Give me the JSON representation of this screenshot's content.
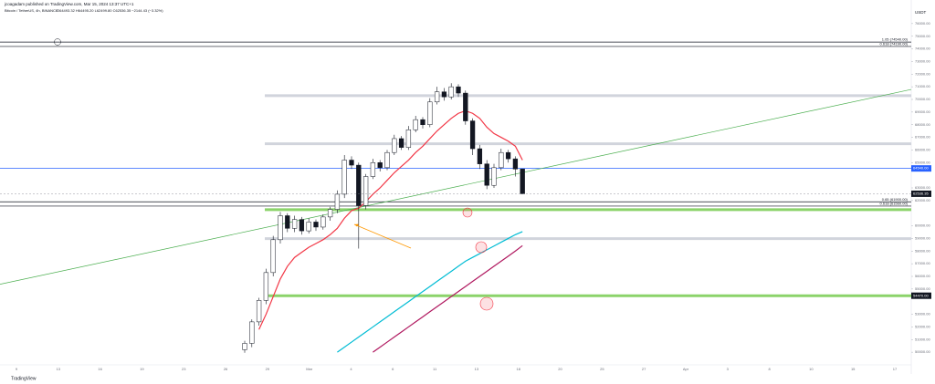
{
  "header": {
    "publisher": "jcoagadam published on TradingView.com, Mar 15, 2024 13:37 UTC+1",
    "symbol": "Bitcoin / TetherUS, 4h, BINANCE",
    "ohlc": "O64493.32 H64495.20 L62499.80 C62536.35 −2144.43 (−3.32%)",
    "currency": "USDT",
    "brand": "TradingView"
  },
  "chart_data": {
    "type": "candlestick",
    "up_color": "#ffffff",
    "down_color": "#131722",
    "ylim": [
      49000,
      77000
    ],
    "yticks": [
      {
        "value": 76000,
        "label": "76000.00"
      },
      {
        "value": 75000,
        "label": "75000.00"
      },
      {
        "value": 74000,
        "label": "74000.00"
      },
      {
        "value": 73000,
        "label": "73000.00"
      },
      {
        "value": 72000,
        "label": "72000.00"
      },
      {
        "value": 71000,
        "label": "71000.00"
      },
      {
        "value": 70000,
        "label": "70000.00"
      },
      {
        "value": 69000,
        "label": "69000.00"
      },
      {
        "value": 68000,
        "label": "68000.00"
      },
      {
        "value": 67000,
        "label": "67000.00"
      },
      {
        "value": 66000,
        "label": "66000.00"
      },
      {
        "value": 65000,
        "label": "65000.00"
      },
      {
        "value": 63000,
        "label": "63000.00"
      },
      {
        "value": 62000,
        "label": "62000.00"
      },
      {
        "value": 60000,
        "label": "60000.00"
      },
      {
        "value": 59000,
        "label": "59000.00"
      },
      {
        "value": 58000,
        "label": "58000.00"
      },
      {
        "value": 57000,
        "label": "57000.00"
      },
      {
        "value": 56000,
        "label": "56000.00"
      },
      {
        "value": 55000,
        "label": "55000.00"
      },
      {
        "value": 53000,
        "label": "53000.00"
      },
      {
        "value": 52000,
        "label": "52000.00"
      },
      {
        "value": 51000,
        "label": "51000.00"
      },
      {
        "value": 50000,
        "label": "50000.00"
      }
    ],
    "time_labels": [
      "9",
      "13",
      "16",
      "19",
      "23",
      "26",
      "29",
      "Mar",
      "4",
      "6",
      "11",
      "13",
      "18",
      "20",
      "25",
      "27",
      "Apr",
      "3",
      "8",
      "10",
      "15",
      "17"
    ],
    "candles": [
      [
        50200,
        50900,
        49960,
        50700
      ],
      [
        50700,
        52600,
        50400,
        52400
      ],
      [
        52400,
        54300,
        52100,
        54100
      ],
      [
        54100,
        56600,
        53800,
        56300
      ],
      [
        56300,
        59200,
        56000,
        58900
      ],
      [
        58900,
        61100,
        58600,
        60800
      ],
      [
        60800,
        61000,
        59500,
        59800
      ],
      [
        59800,
        60800,
        59500,
        60500
      ],
      [
        60500,
        60700,
        59300,
        59600
      ],
      [
        59600,
        60600,
        59400,
        60300
      ],
      [
        60300,
        60500,
        59600,
        59900
      ],
      [
        59900,
        60900,
        59700,
        60700
      ],
      [
        60700,
        61500,
        60400,
        61300
      ],
      [
        61300,
        62800,
        61000,
        62500
      ],
      [
        62500,
        65600,
        62200,
        65200
      ],
      [
        65200,
        65500,
        64500,
        64800
      ],
      [
        64800,
        65000,
        58200,
        61600
      ],
      [
        61600,
        64100,
        61300,
        63900
      ],
      [
        63900,
        65300,
        63700,
        65000
      ],
      [
        65000,
        65200,
        64300,
        64600
      ],
      [
        64600,
        66000,
        64400,
        65800
      ],
      [
        65800,
        67200,
        65600,
        66900
      ],
      [
        66900,
        67100,
        66000,
        66200
      ],
      [
        66200,
        67900,
        66000,
        67600
      ],
      [
        67600,
        68700,
        67400,
        68400
      ],
      [
        68400,
        68600,
        67700,
        68000
      ],
      [
        68000,
        70100,
        67800,
        69800
      ],
      [
        69800,
        71000,
        69600,
        70600
      ],
      [
        70600,
        70900,
        69900,
        70200
      ],
      [
        70200,
        71280,
        70000,
        71000
      ],
      [
        71000,
        71200,
        70200,
        70500
      ],
      [
        70500,
        70700,
        68000,
        68300
      ],
      [
        68300,
        68500,
        65600,
        66100
      ],
      [
        66100,
        66400,
        64500,
        64900
      ],
      [
        64900,
        65200,
        62900,
        63200
      ],
      [
        63200,
        64900,
        63000,
        64600
      ],
      [
        64600,
        66100,
        64400,
        65800
      ],
      [
        65800,
        66000,
        65000,
        65300
      ],
      [
        65300,
        65500,
        63900,
        64490
      ],
      [
        64493.32,
        64495.2,
        62499.8,
        62536.35
      ]
    ],
    "series": [
      {
        "color": "#f23645",
        "values": [
          null,
          null,
          51800,
          53000,
          54400,
          55800,
          56800,
          57500,
          57900,
          58300,
          58600,
          58900,
          59300,
          59800,
          60600,
          61200,
          61400,
          61900,
          62500,
          63000,
          63600,
          64200,
          64700,
          65200,
          65800,
          66300,
          66900,
          67500,
          68000,
          68500,
          68900,
          69100,
          68900,
          68500,
          67800,
          67300,
          67000,
          66700,
          66300,
          65200
        ]
      },
      {
        "color": "#00bcd4",
        "values": [
          null,
          null,
          null,
          null,
          null,
          null,
          null,
          null,
          null,
          null,
          null,
          null,
          null,
          50000,
          50400,
          50800,
          51200,
          51600,
          52000,
          52400,
          52800,
          53200,
          53600,
          54000,
          54400,
          54800,
          55200,
          55600,
          56000,
          56400,
          56800,
          57200,
          57500,
          57800,
          58100,
          58400,
          58700,
          59000,
          59300,
          59540
        ]
      },
      {
        "color": "#b0185f",
        "values": [
          null,
          null,
          null,
          null,
          null,
          null,
          null,
          null,
          null,
          null,
          null,
          null,
          null,
          null,
          null,
          null,
          null,
          null,
          50000,
          50400,
          50800,
          51200,
          51600,
          52000,
          52400,
          52800,
          53200,
          53600,
          54000,
          54400,
          54800,
          55200,
          55600,
          56000,
          56400,
          56800,
          57200,
          57600,
          58000,
          58430
        ]
      }
    ],
    "levels": [
      {
        "price": 74540,
        "color": "#131722",
        "label": "1.05 (74540.00)"
      },
      {
        "price": 74190,
        "color": "#131722",
        "label": "0.618 (74190.00)"
      },
      {
        "price": 61900,
        "color": "#131722",
        "label": "0.65 (61900.00)"
      },
      {
        "price": 61560,
        "color": "#131722",
        "label": "0.618 (61560.00)"
      },
      {
        "price": 64540,
        "color": "#2962ff",
        "axis_label": "64540.00"
      },
      {
        "price": 70300,
        "color": "#d1d4dc"
      },
      {
        "price": 66490,
        "color": "#d1d4dc"
      },
      {
        "price": 58990,
        "color": "#d1d4dc"
      },
      {
        "price": 61280,
        "color": "#8bd36a"
      },
      {
        "price": 54470,
        "color": "#8bd36a",
        "axis_label": "54470.00"
      }
    ],
    "trendline": {
      "from": 55375,
      "to": 70790,
      "color": "#4caf50"
    }
  }
}
